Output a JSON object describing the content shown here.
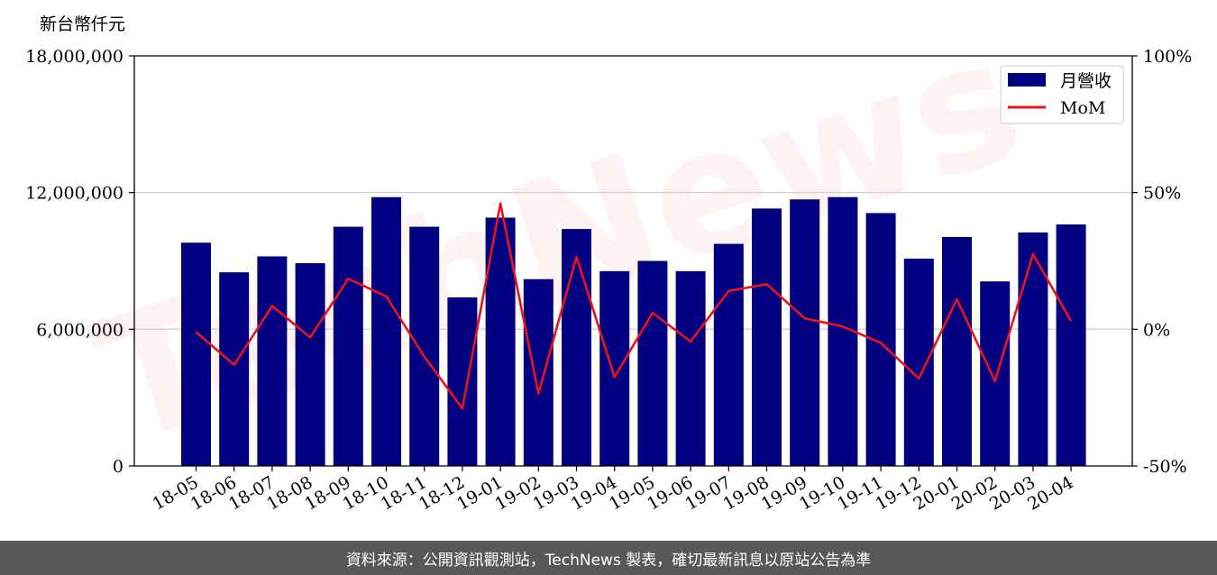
{
  "chart_data": {
    "type": "bar",
    "unit_label": "新台幣仟元",
    "categories": [
      "18-05",
      "18-06",
      "18-07",
      "18-08",
      "18-09",
      "18-10",
      "18-11",
      "18-12",
      "19-01",
      "19-02",
      "19-03",
      "19-04",
      "19-05",
      "19-06",
      "19-07",
      "19-08",
      "19-09",
      "19-10",
      "19-11",
      "19-12",
      "20-01",
      "20-02",
      "20-03",
      "20-04"
    ],
    "series": [
      {
        "name": "月營收",
        "axis": "left",
        "color": "#000080",
        "values": [
          9800000,
          8500000,
          9200000,
          8900000,
          10500000,
          11800000,
          10500000,
          7400000,
          10900000,
          8200000,
          10400000,
          8550000,
          9000000,
          8550000,
          9750000,
          11300000,
          11700000,
          11800000,
          11100000,
          9100000,
          10050000,
          8100000,
          10250000,
          10600000
        ]
      },
      {
        "name": "MoM",
        "axis": "right",
        "color": "#e8141c",
        "values": [
          -1,
          -13,
          8.5,
          -3,
          18.5,
          12,
          -10,
          -29,
          46,
          -23.5,
          26.5,
          -17.5,
          6,
          -4.5,
          14,
          16.5,
          4,
          1,
          -5,
          -18,
          11,
          -19,
          27.5,
          3
        ]
      }
    ],
    "y_left": {
      "min": 0,
      "max": 18000000,
      "ticks": [
        0,
        6000000,
        12000000,
        18000000
      ],
      "tick_labels": [
        "0",
        "6,000,000",
        "12,000,000",
        "18,000,000"
      ]
    },
    "y_right": {
      "min": -50,
      "max": 100,
      "ticks": [
        -50,
        0,
        50,
        100
      ],
      "tick_labels": [
        "-50%",
        "0%",
        "50%",
        "100%"
      ]
    },
    "grid": "horizontal",
    "legend_position": "top-right"
  },
  "watermark": "TechNews",
  "footer": {
    "text": "資料來源：公開資訊觀測站，TechNews 製表，確切最新訊息以原站公告為準"
  }
}
